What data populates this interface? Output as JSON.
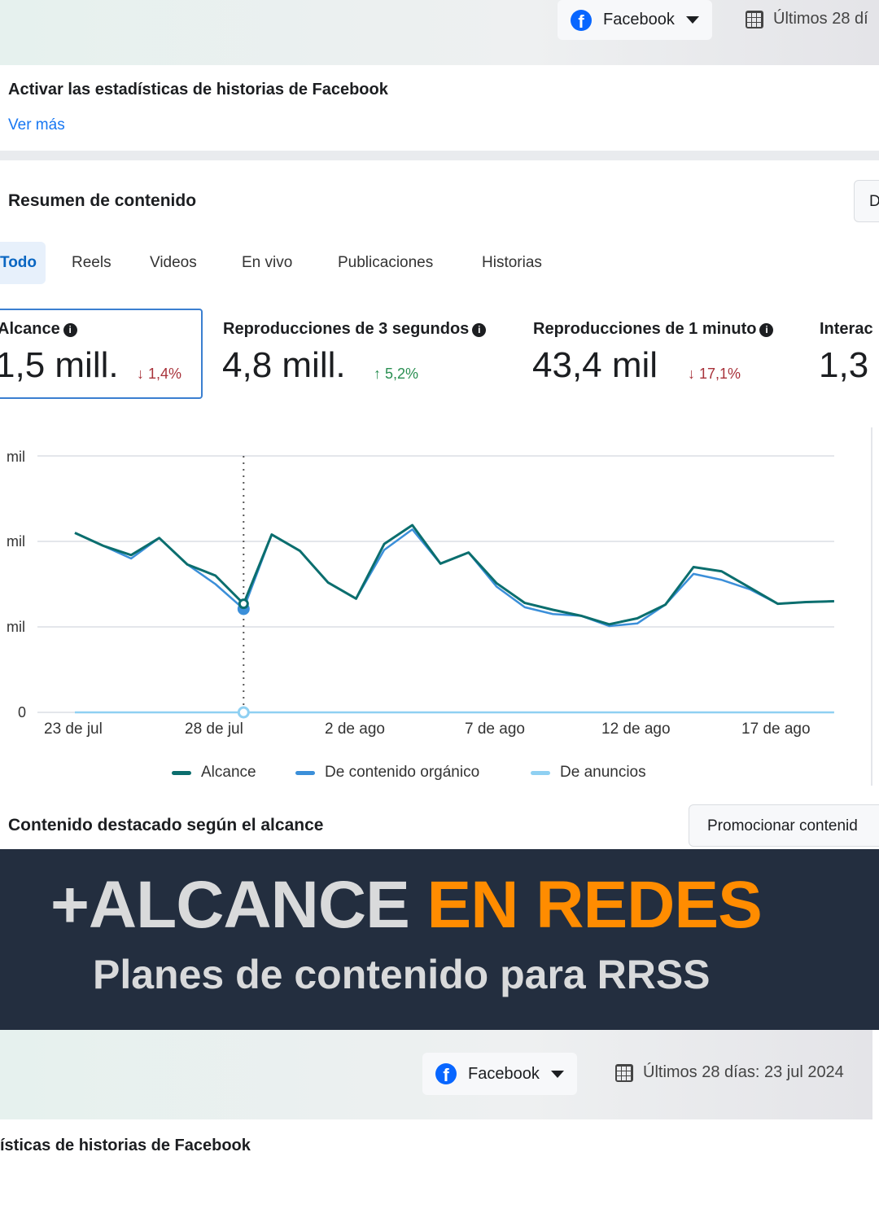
{
  "top": {
    "platform_label": "Facebook",
    "date_label": "Últimos 28 dí"
  },
  "stories_banner": {
    "title": "Activar las estadísticas de historias de Facebook",
    "link": "Ver más"
  },
  "summary": {
    "title": "Resumen de contenido",
    "right_button": "D",
    "tabs": [
      {
        "label": "Todo",
        "active": true
      },
      {
        "label": "Reels"
      },
      {
        "label": "Videos"
      },
      {
        "label": "En vivo"
      },
      {
        "label": "Publicaciones"
      },
      {
        "label": "Historias"
      }
    ],
    "metrics": [
      {
        "label": "Alcance",
        "value": "1,5 mill.",
        "change": "↓ 1,4%",
        "trend": "down"
      },
      {
        "label": "Reproducciones de 3 segundos",
        "value": "4,8 mill.",
        "change": "↑ 5,2%",
        "trend": "up"
      },
      {
        "label": "Reproducciones de 1 minuto",
        "value": "43,4 mil",
        "change": "↓ 17,1%",
        "trend": "down"
      },
      {
        "label": "Interac",
        "value": "1,3"
      }
    ]
  },
  "chart_data": {
    "type": "line",
    "y_tick_labels": [
      "0",
      "mil",
      "mil",
      "mil"
    ],
    "ylim": [
      0,
      3
    ],
    "x_tick_labels": [
      "23 de jul",
      "28 de jul",
      "2 de ago",
      "7 de ago",
      "12 de ago",
      "17 de ago"
    ],
    "x_tick_index": [
      0,
      5,
      10,
      15,
      20,
      25
    ],
    "grid": true,
    "legend_position": "bottom",
    "highlighted_index": 6,
    "series": [
      {
        "name": "Alcance",
        "color": "#0b6e6e",
        "values": [
          2.1,
          1.95,
          1.84,
          2.04,
          1.73,
          1.6,
          1.27,
          2.08,
          1.89,
          1.52,
          1.33,
          1.97,
          2.19,
          1.74,
          1.87,
          1.51,
          1.28,
          1.2,
          1.13,
          1.03,
          1.1,
          1.26,
          1.7,
          1.65,
          1.46,
          1.27,
          1.29,
          1.3
        ]
      },
      {
        "name": "De contenido orgánico",
        "color": "#3b8fd9",
        "values": [
          2.1,
          1.95,
          1.8,
          2.04,
          1.73,
          1.5,
          1.21,
          2.08,
          1.89,
          1.52,
          1.33,
          1.9,
          2.14,
          1.74,
          1.87,
          1.47,
          1.23,
          1.15,
          1.13,
          1.01,
          1.04,
          1.26,
          1.62,
          1.55,
          1.44,
          1.27,
          1.29,
          1.3
        ]
      },
      {
        "name": "De anuncios",
        "color": "#8fd0f2",
        "values": [
          0,
          0,
          0,
          0,
          0,
          0,
          0,
          0,
          0,
          0,
          0,
          0,
          0,
          0,
          0,
          0,
          0,
          0,
          0,
          0,
          0,
          0,
          0,
          0,
          0,
          0,
          0,
          0
        ]
      }
    ]
  },
  "featured": {
    "title": "Contenido destacado según el alcance",
    "promote_button": "Promocionar contenid"
  },
  "promo": {
    "headline_part1": "+ALCANCE ",
    "headline_part2": "EN REDES",
    "subheadline": "Planes de contenido para RRSS",
    "accent_color": "#ff8c00"
  },
  "bottom": {
    "platform_label": "Facebook",
    "date_label": "Últimos 28 días: 23 jul 2024",
    "stories_title_fragment": "ísticas de historias de Facebook"
  }
}
